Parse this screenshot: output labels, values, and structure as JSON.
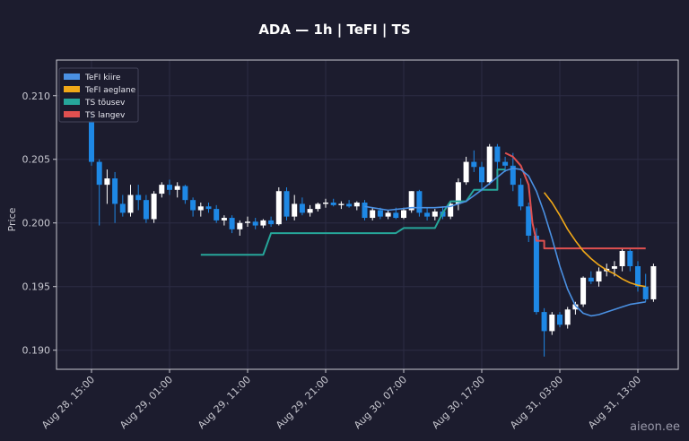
{
  "chart_data": {
    "type": "candlestick",
    "title": "ADA — 1h  |  TeFI  |  TS",
    "ylabel": "Price",
    "xlabel": "",
    "ylim": [
      0.1885,
      0.2128
    ],
    "x_tick_labels": [
      "Aug 28, 15:00",
      "Aug 29, 01:00",
      "Aug 29, 11:00",
      "Aug 29, 21:00",
      "Aug 30, 07:00",
      "Aug 30, 17:00",
      "Aug 31, 03:00",
      "Aug 31, 13:00"
    ],
    "x_tick_index": [
      0,
      10,
      20,
      30,
      40,
      50,
      60,
      70
    ],
    "y_ticks": [
      0.19,
      0.195,
      0.2,
      0.205,
      0.21
    ],
    "y_tick_labels": [
      "0.190",
      "0.195",
      "0.200",
      "0.205",
      "0.210"
    ],
    "grid": true,
    "legend_position": "top-left",
    "colors": {
      "background": "#1c1c2e",
      "up": "#ffffff",
      "down": "#1e88e5",
      "fast": "#4a90e2",
      "slow": "#f0a818",
      "ts_up": "#26a69a",
      "ts_down": "#e05050",
      "grid": "#2c2c44",
      "axes": "#c8c8d0"
    },
    "series": [
      {
        "name": "TeFI kiire",
        "color": "#4a90e2"
      },
      {
        "name": "TeFI aeglane",
        "color": "#f0a818"
      },
      {
        "name": "TS tõusev",
        "color": "#26a69a"
      },
      {
        "name": "TS langev",
        "color": "#e05050"
      }
    ],
    "candles": [
      [
        0.208,
        0.2087,
        0.2045,
        0.2048
      ],
      [
        0.2048,
        0.205,
        0.1998,
        0.203
      ],
      [
        0.203,
        0.2042,
        0.2015,
        0.2035
      ],
      [
        0.2035,
        0.204,
        0.2,
        0.2015
      ],
      [
        0.2015,
        0.2022,
        0.2005,
        0.2008
      ],
      [
        0.2008,
        0.203,
        0.2005,
        0.2022
      ],
      [
        0.2022,
        0.203,
        0.201,
        0.2018
      ],
      [
        0.2018,
        0.2022,
        0.2,
        0.2003
      ],
      [
        0.2003,
        0.2025,
        0.2,
        0.2023
      ],
      [
        0.2023,
        0.2032,
        0.202,
        0.203
      ],
      [
        0.203,
        0.2034,
        0.2022,
        0.2026
      ],
      [
        0.2026,
        0.2032,
        0.202,
        0.2029
      ],
      [
        0.2029,
        0.203,
        0.2015,
        0.2018
      ],
      [
        0.2018,
        0.202,
        0.2005,
        0.201
      ],
      [
        0.201,
        0.2016,
        0.2005,
        0.2013
      ],
      [
        0.2013,
        0.2016,
        0.2008,
        0.2011
      ],
      [
        0.2011,
        0.2014,
        0.2,
        0.2002
      ],
      [
        0.2002,
        0.2006,
        0.1998,
        0.2004
      ],
      [
        0.2004,
        0.2006,
        0.1992,
        0.1995
      ],
      [
        0.1995,
        0.2002,
        0.199,
        0.2
      ],
      [
        0.2,
        0.2005,
        0.1997,
        0.2001
      ],
      [
        0.2001,
        0.2004,
        0.1995,
        0.1998
      ],
      [
        0.1998,
        0.2003,
        0.1996,
        0.2002
      ],
      [
        0.2002,
        0.2005,
        0.1997,
        0.1999
      ],
      [
        0.1999,
        0.2028,
        0.1998,
        0.2025
      ],
      [
        0.2025,
        0.2028,
        0.2002,
        0.2005
      ],
      [
        0.2005,
        0.2022,
        0.2002,
        0.2015
      ],
      [
        0.2015,
        0.202,
        0.2006,
        0.2008
      ],
      [
        0.2008,
        0.2014,
        0.2005,
        0.2011
      ],
      [
        0.2011,
        0.2016,
        0.2009,
        0.2015
      ],
      [
        0.2015,
        0.2019,
        0.2012,
        0.2016
      ],
      [
        0.2016,
        0.2019,
        0.2013,
        0.2014
      ],
      [
        0.2014,
        0.2017,
        0.2011,
        0.2015
      ],
      [
        0.2015,
        0.2018,
        0.2012,
        0.2013
      ],
      [
        0.2013,
        0.2017,
        0.201,
        0.2016
      ],
      [
        0.2016,
        0.2018,
        0.2002,
        0.2004
      ],
      [
        0.2004,
        0.2012,
        0.2002,
        0.201
      ],
      [
        0.201,
        0.2012,
        0.2003,
        0.2005
      ],
      [
        0.2005,
        0.201,
        0.2003,
        0.2008
      ],
      [
        0.2008,
        0.2012,
        0.2003,
        0.2004
      ],
      [
        0.2004,
        0.2012,
        0.2003,
        0.201
      ],
      [
        0.201,
        0.2025,
        0.2008,
        0.2025
      ],
      [
        0.2025,
        0.2026,
        0.2005,
        0.2008
      ],
      [
        0.2008,
        0.2012,
        0.2002,
        0.2005
      ],
      [
        0.2005,
        0.2011,
        0.2002,
        0.2009
      ],
      [
        0.2009,
        0.2013,
        0.2003,
        0.2005
      ],
      [
        0.2005,
        0.2017,
        0.2003,
        0.2015
      ],
      [
        0.2015,
        0.2035,
        0.201,
        0.2032
      ],
      [
        0.2032,
        0.2052,
        0.203,
        0.2048
      ],
      [
        0.2048,
        0.2057,
        0.204,
        0.2044
      ],
      [
        0.2044,
        0.2048,
        0.2025,
        0.2032
      ],
      [
        0.2032,
        0.2062,
        0.203,
        0.206
      ],
      [
        0.206,
        0.2062,
        0.204,
        0.2048
      ],
      [
        0.2048,
        0.2052,
        0.204,
        0.2045
      ],
      [
        0.2045,
        0.2055,
        0.2025,
        0.203
      ],
      [
        0.203,
        0.2035,
        0.201,
        0.2013
      ],
      [
        0.2013,
        0.2016,
        0.1985,
        0.199
      ],
      [
        0.199,
        0.1996,
        0.1928,
        0.193
      ],
      [
        0.193,
        0.1933,
        0.1895,
        0.1915
      ],
      [
        0.1915,
        0.193,
        0.1912,
        0.1928
      ],
      [
        0.1928,
        0.193,
        0.1918,
        0.192
      ],
      [
        0.192,
        0.1934,
        0.1917,
        0.1932
      ],
      [
        0.1932,
        0.1938,
        0.1928,
        0.1936
      ],
      [
        0.1936,
        0.1958,
        0.1934,
        0.1957
      ],
      [
        0.1957,
        0.1962,
        0.1952,
        0.1954
      ],
      [
        0.1954,
        0.1965,
        0.195,
        0.1962
      ],
      [
        0.1962,
        0.1968,
        0.1958,
        0.1964
      ],
      [
        0.1964,
        0.197,
        0.1958,
        0.1966
      ],
      [
        0.1966,
        0.198,
        0.1962,
        0.1978
      ],
      [
        0.1978,
        0.198,
        0.1962,
        0.1966
      ],
      [
        0.1966,
        0.197,
        0.1946,
        0.195
      ],
      [
        0.195,
        0.196,
        0.1938,
        0.194
      ],
      [
        0.194,
        0.1968,
        0.1938,
        0.1966
      ]
    ],
    "lines": {
      "fast": [
        [
          35,
          0.2013
        ],
        [
          38,
          0.201
        ],
        [
          41,
          0.2012
        ],
        [
          44,
          0.2012
        ],
        [
          46,
          0.2013
        ],
        [
          48,
          0.2017
        ],
        [
          50,
          0.2026
        ],
        [
          52,
          0.2036
        ],
        [
          53,
          0.2041
        ],
        [
          54,
          0.2043
        ],
        [
          55,
          0.2042
        ],
        [
          56,
          0.2037
        ],
        [
          57,
          0.2025
        ],
        [
          58,
          0.2008
        ],
        [
          59,
          0.1988
        ],
        [
          60,
          0.1966
        ],
        [
          61,
          0.1948
        ],
        [
          62,
          0.1935
        ],
        [
          63,
          0.1929
        ],
        [
          64,
          0.1927
        ],
        [
          65,
          0.1928
        ],
        [
          66,
          0.193
        ],
        [
          67,
          0.1932
        ],
        [
          68,
          0.1934
        ],
        [
          69,
          0.1936
        ],
        [
          70,
          0.1937
        ],
        [
          71,
          0.1938
        ]
      ],
      "slow": [
        [
          58,
          0.2024
        ],
        [
          59,
          0.2016
        ],
        [
          60,
          0.2006
        ],
        [
          61,
          0.1995
        ],
        [
          62,
          0.1986
        ],
        [
          63,
          0.1978
        ],
        [
          64,
          0.1972
        ],
        [
          65,
          0.1967
        ],
        [
          66,
          0.1963
        ],
        [
          67,
          0.196
        ],
        [
          68,
          0.1956
        ],
        [
          69,
          0.1953
        ],
        [
          70,
          0.1951
        ],
        [
          71,
          0.195
        ]
      ],
      "ts_up": [
        [
          14,
          0.1975
        ],
        [
          22,
          0.1975
        ],
        [
          23,
          0.1992
        ],
        [
          39,
          0.1992
        ],
        [
          40,
          0.1996
        ],
        [
          44,
          0.1996
        ],
        [
          45,
          0.2008
        ],
        [
          46,
          0.2017
        ],
        [
          48,
          0.2017
        ],
        [
          49,
          0.2026
        ],
        [
          52,
          0.2026
        ],
        [
          52,
          0.2042
        ],
        [
          53,
          0.2042
        ]
      ],
      "ts_down": [
        [
          53,
          0.2055
        ],
        [
          54,
          0.2052
        ],
        [
          55,
          0.2045
        ],
        [
          56,
          0.203
        ],
        [
          56.5,
          0.2
        ],
        [
          57,
          0.1986
        ],
        [
          58,
          0.1986
        ],
        [
          58,
          0.198
        ],
        [
          71,
          0.198
        ]
      ]
    }
  },
  "watermark": "aieon.ee"
}
